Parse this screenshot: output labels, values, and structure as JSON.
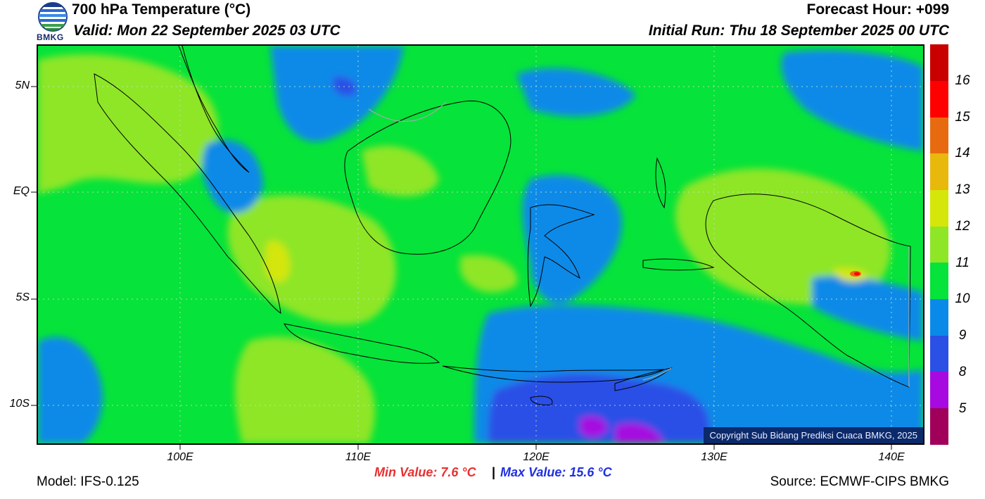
{
  "header": {
    "title": "700 hPa Temperature (°C)",
    "valid": "Valid: Mon 22 September 2025 03 UTC",
    "forecast_hour": "Forecast Hour: +099",
    "initial_run": "Initial Run: Thu 18 September 2025 00 UTC",
    "logo_text": "BMKG"
  },
  "map": {
    "lat_labels": [
      "5N",
      "EQ",
      "5S",
      "10S"
    ],
    "lon_labels": [
      "100E",
      "110E",
      "120E",
      "130E",
      "140E"
    ],
    "copyright": "Copyright Sub Bidang Prediksi Cuaca BMKG, 2025"
  },
  "colorbar": {
    "labels": [
      "16",
      "15",
      "14",
      "13",
      "12",
      "11",
      "10",
      "9",
      "8",
      "5"
    ],
    "colors": [
      "#c80000",
      "#ff0000",
      "#e86a10",
      "#e8b80c",
      "#d4e60a",
      "#8ee626",
      "#06e33a",
      "#0a8ae8",
      "#2a50e6",
      "#a60ae0",
      "#a0005a"
    ]
  },
  "stats": {
    "min_value": "Min Value: 7.6 °C",
    "separator": "|",
    "max_value": "Max Value: 15.6 °C",
    "min_color": "#e83030",
    "max_color": "#2030e0"
  },
  "footer": {
    "model": "Model: IFS-0.125",
    "source": "Source: ECMWF-CIPS BMKG"
  }
}
